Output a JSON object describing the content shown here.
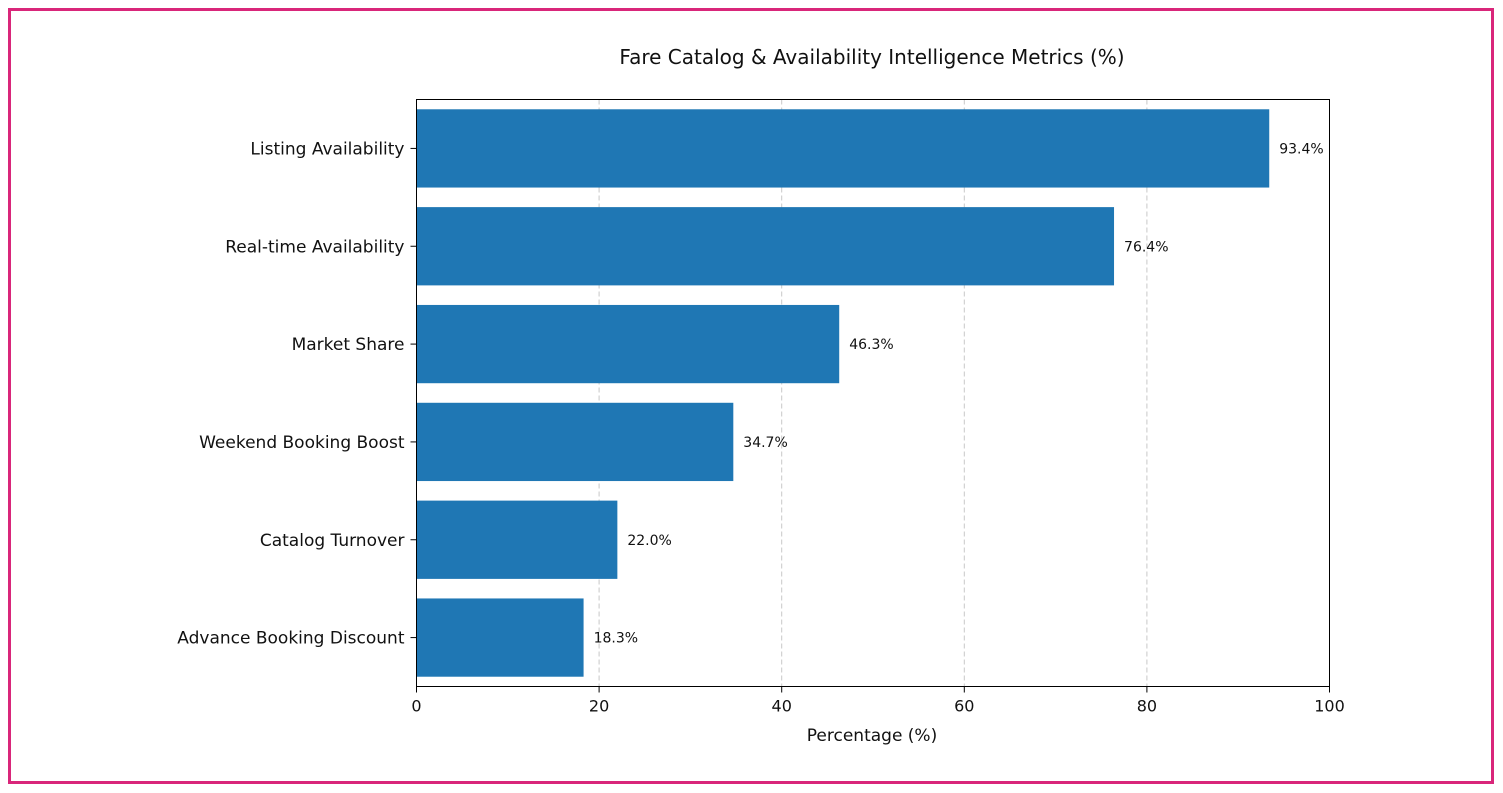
{
  "chart_data": {
    "type": "bar",
    "orientation": "horizontal",
    "title": "Fare Catalog & Availability Intelligence Metrics (%)",
    "xlabel": "Percentage (%)",
    "ylabel": "",
    "xlim": [
      0,
      100
    ],
    "xticks": [
      "0",
      "20",
      "40",
      "60",
      "80",
      "100"
    ],
    "grid": "x-dashed",
    "categories": [
      "Listing Availability",
      "Real-time Availability",
      "Market Share",
      "Weekend Booking Boost",
      "Catalog Turnover",
      "Advance Booking Discount"
    ],
    "values": [
      93.4,
      76.4,
      46.3,
      34.7,
      22.0,
      18.3
    ],
    "data_labels": [
      "93.4%",
      "76.4%",
      "46.3%",
      "34.7%",
      "22.0%",
      "18.3%"
    ],
    "bar_color": "#1f77b4",
    "frame_color": "#d9267a"
  }
}
